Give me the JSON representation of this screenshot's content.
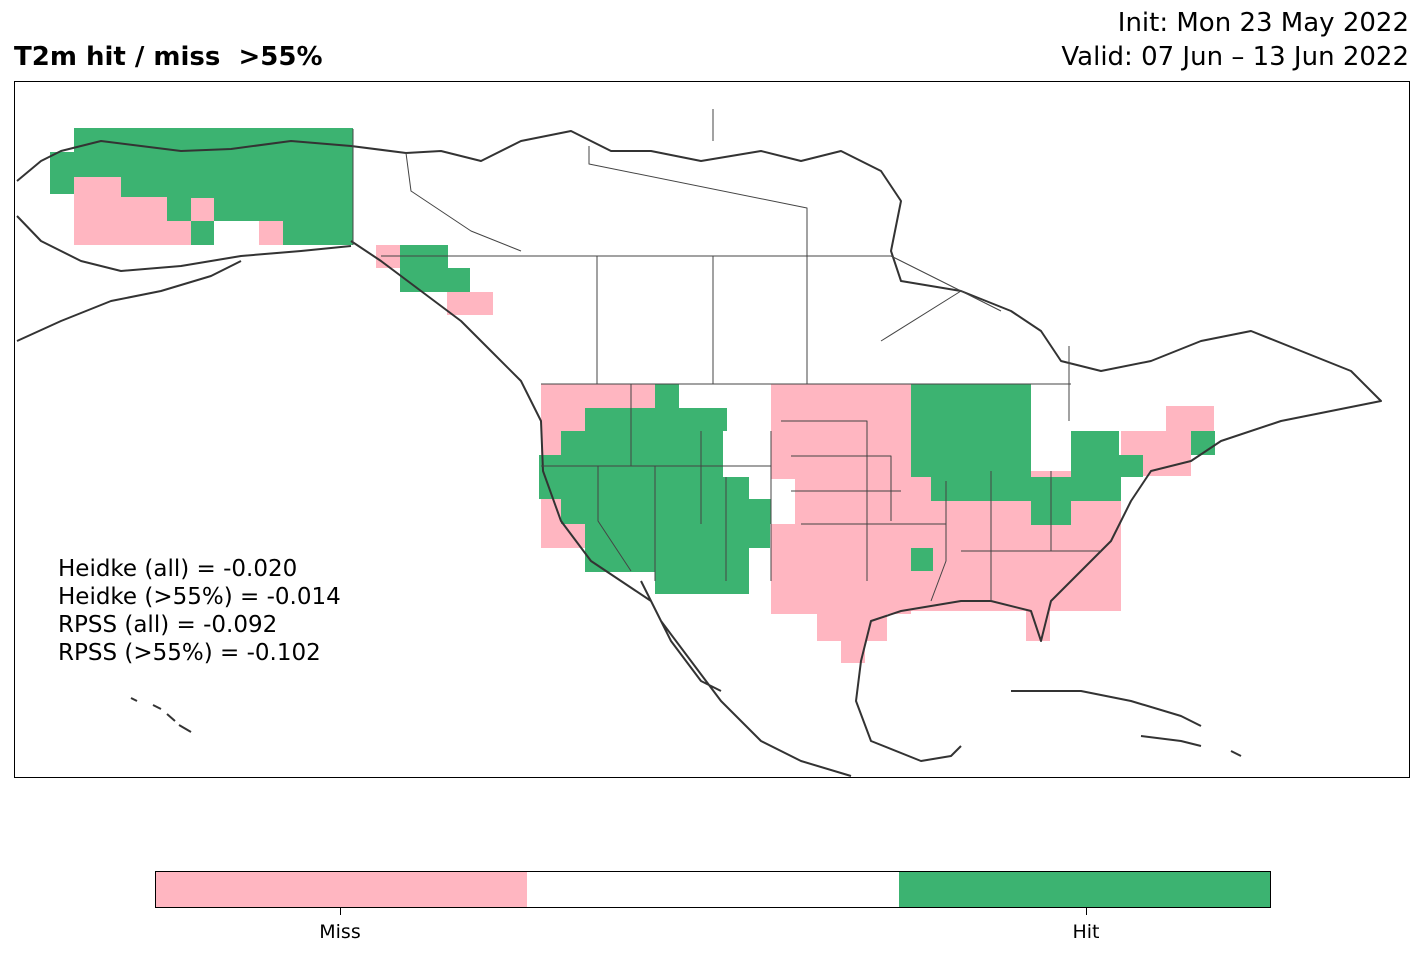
{
  "header": {
    "title": "T2m hit / miss  >55%",
    "init": "Init: Mon 23 May 2022",
    "valid": "Valid: 07 Jun – 13 Jun 2022"
  },
  "scores": [
    "Heidke (all) = -0.020",
    "Heidke (>55%) = -0.014",
    "RPSS (all) = -0.092",
    "RPSS (>55%) = -0.102"
  ],
  "legend": {
    "colors": {
      "miss": "#ffb6c1",
      "neutral": "#ffffff",
      "hit": "#3cb371"
    },
    "miss_label": "Miss",
    "hit_label": "Hit"
  },
  "map_colors": {
    "coast": "#333333",
    "border": "#444444"
  }
}
